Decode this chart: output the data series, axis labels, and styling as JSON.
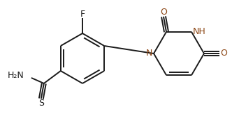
{
  "bg_color": "#ffffff",
  "bond_color": "#1a1a1a",
  "nitrogen_color": "#8B4513",
  "oxygen_color": "#8B4513",
  "lw": 1.4,
  "figsize": [
    3.42,
    1.77
  ],
  "dpi": 100,
  "xlim": [
    0,
    342
  ],
  "ylim": [
    0,
    177
  ]
}
